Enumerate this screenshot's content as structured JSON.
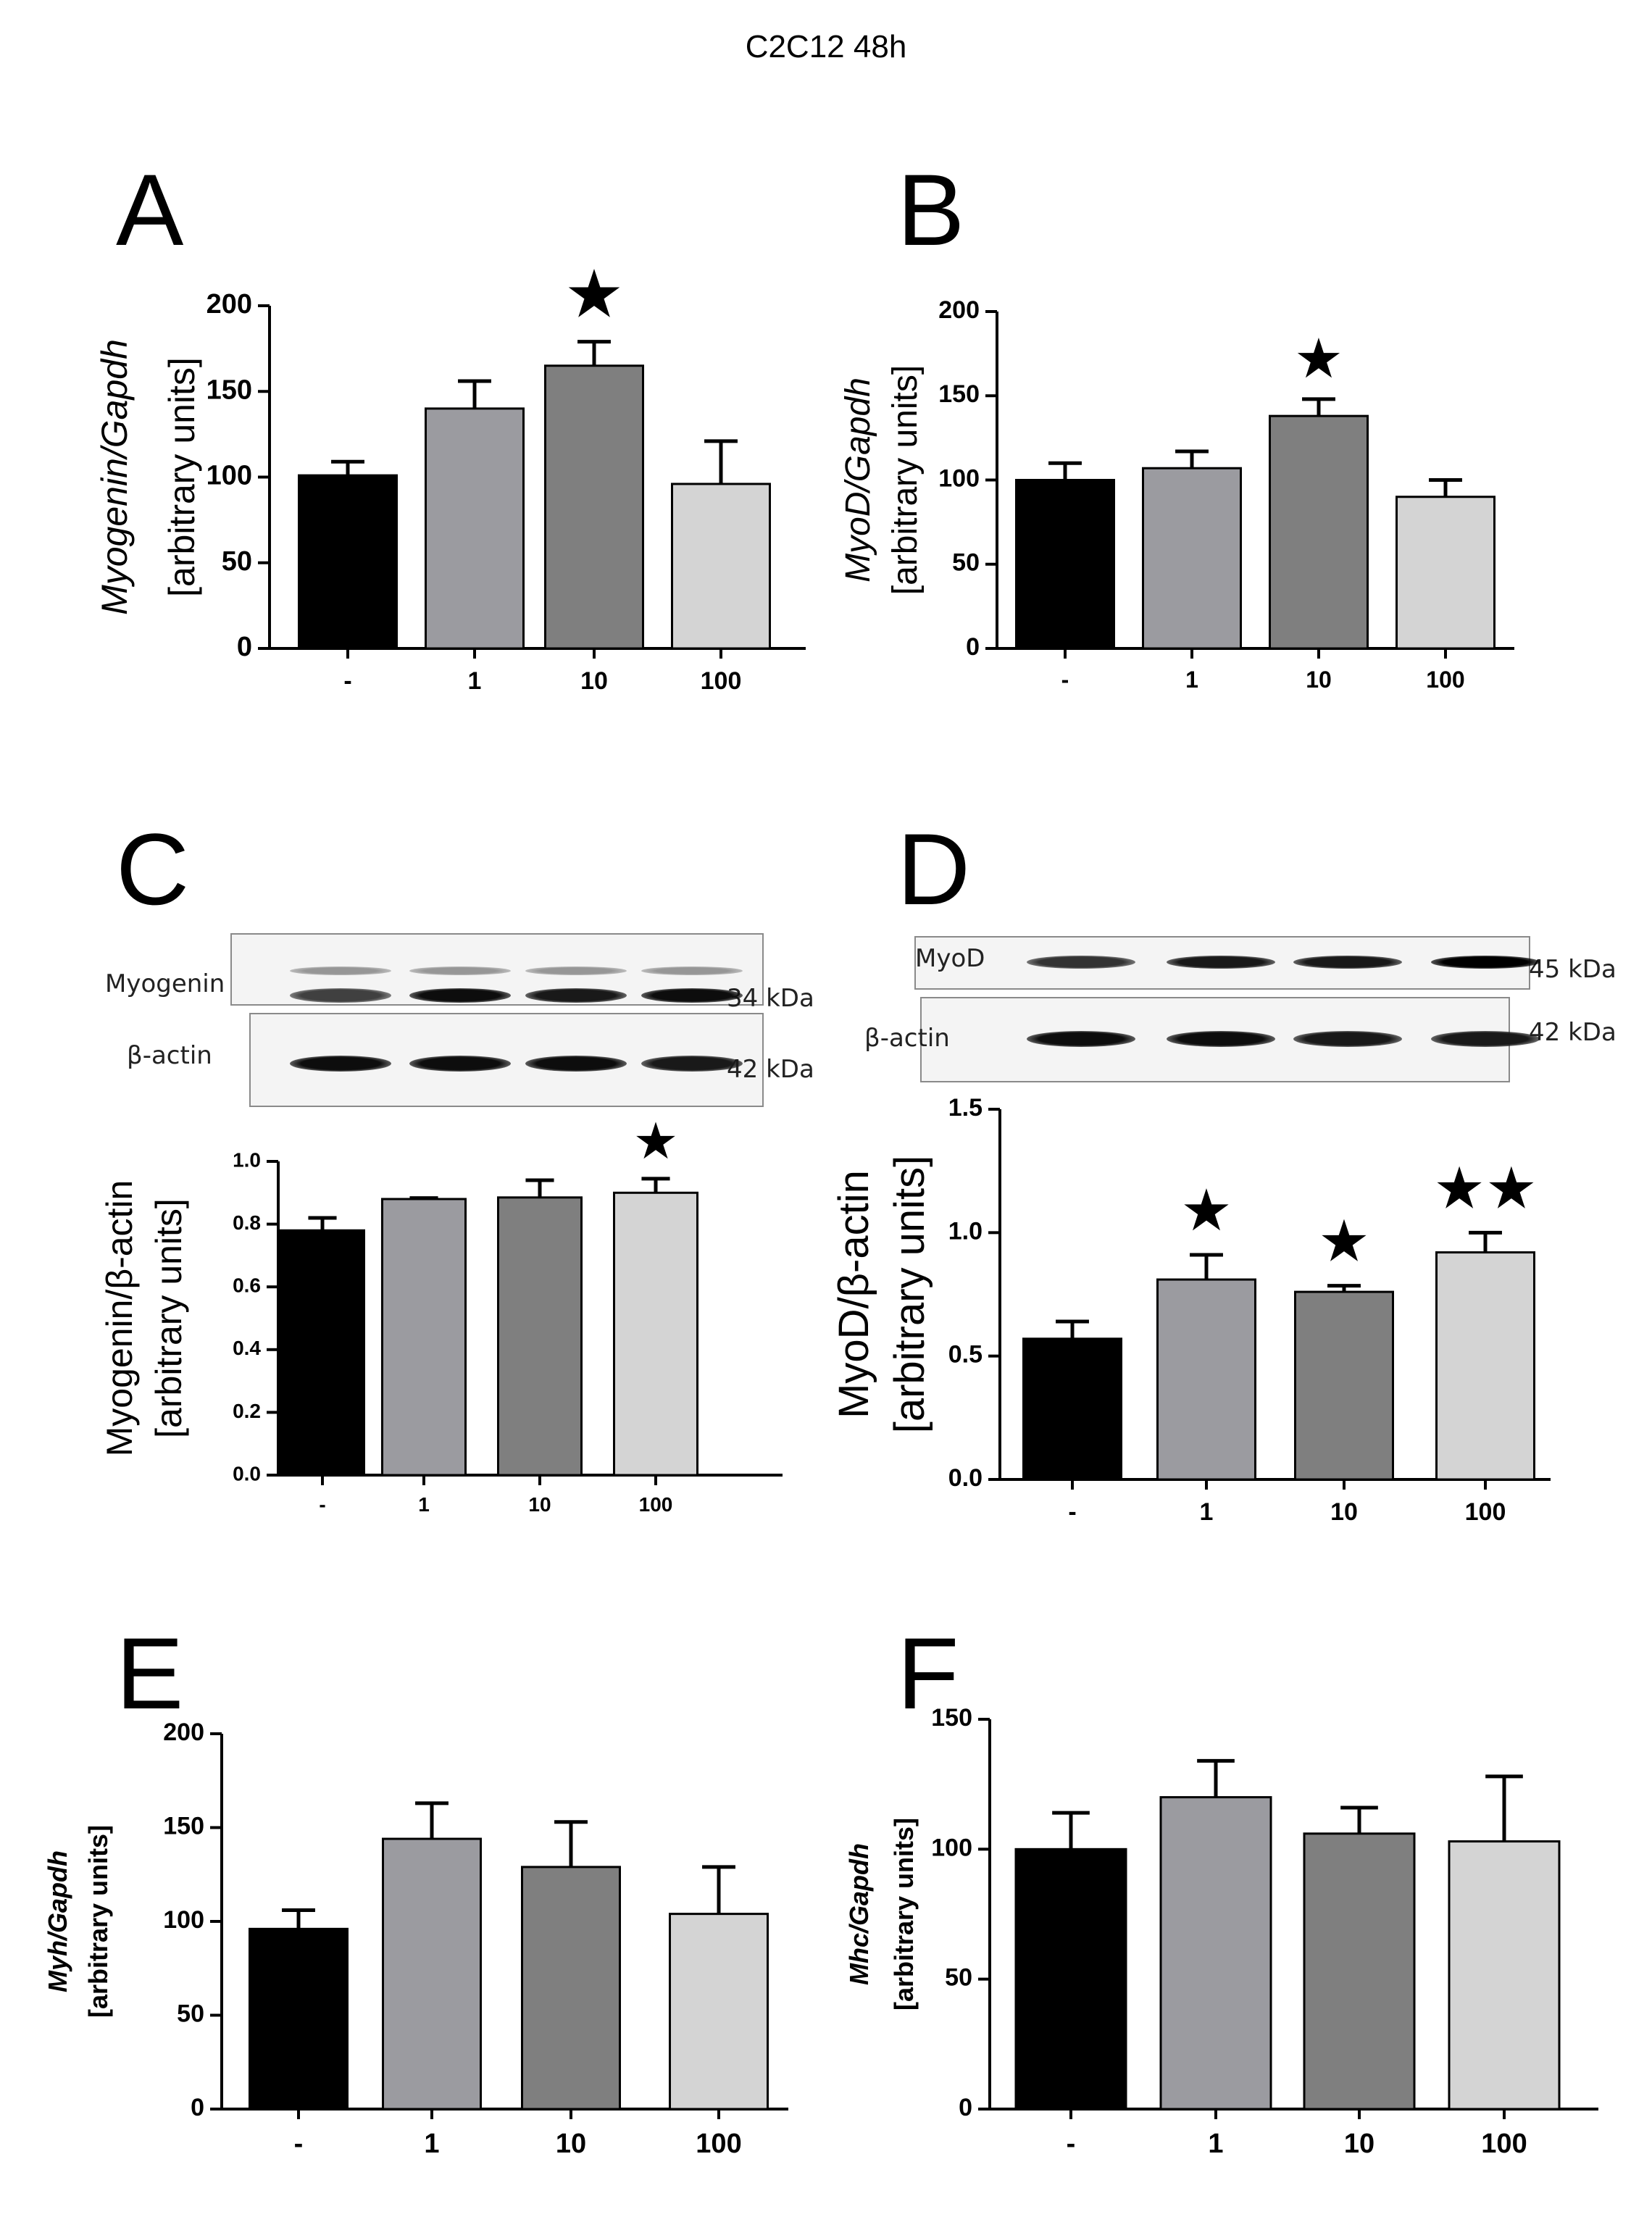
{
  "figure_title": "C2C12 48h",
  "colors": {
    "bar0": "#000000",
    "bar1": "#9b9ba0",
    "bar2": "#7f7f7f",
    "bar3": "#d4d4d4"
  },
  "panels": {
    "A": {
      "letter": "A"
    },
    "B": {
      "letter": "B"
    },
    "C": {
      "letter": "C",
      "blot": {
        "rows": [
          {
            "label": "Myogenin",
            "kda": "34 kDa",
            "intensity": [
              0.75,
              0.95,
              0.9,
              0.95
            ]
          },
          {
            "label": "β-actin",
            "kda": "42 kDa",
            "intensity": [
              0.95,
              0.95,
              0.95,
              0.9
            ]
          }
        ]
      }
    },
    "D": {
      "letter": "D",
      "blot": {
        "rows": [
          {
            "label": "MyoD",
            "kda": "45 kDa",
            "intensity": [
              0.8,
              0.9,
              0.9,
              1.0
            ]
          },
          {
            "label": "β-actin",
            "kda": "42 kDa",
            "intensity": [
              0.95,
              0.95,
              0.9,
              0.9
            ]
          }
        ]
      }
    },
    "E": {
      "letter": "E"
    },
    "F": {
      "letter": "F"
    }
  },
  "chart_data": [
    {
      "panel": "A",
      "type": "bar",
      "categories": [
        "-",
        "1",
        "10",
        "100"
      ],
      "values": [
        101,
        140,
        165,
        96
      ],
      "errors": [
        8,
        16,
        14,
        25
      ],
      "significance": [
        "",
        "",
        "★",
        ""
      ],
      "ylabel_italic": "Myogenin/Gapdh",
      "ylabel_unit": "[arbitrary units]",
      "ylim": [
        0,
        200
      ],
      "yticks": [
        "0",
        "50",
        "100",
        "150",
        "200"
      ]
    },
    {
      "panel": "B",
      "type": "bar",
      "categories": [
        "-",
        "1",
        "10",
        "100"
      ],
      "values": [
        100,
        107,
        138,
        90
      ],
      "errors": [
        10,
        10,
        10,
        10
      ],
      "significance": [
        "",
        "",
        "★",
        ""
      ],
      "ylabel_italic": "MyoD/Gapdh",
      "ylabel_unit": "[arbitrary units]",
      "ylim": [
        0,
        200
      ],
      "yticks": [
        "0",
        "50",
        "100",
        "150",
        "200"
      ]
    },
    {
      "panel": "C",
      "type": "bar",
      "categories": [
        "-",
        "1",
        "10",
        "100"
      ],
      "values": [
        0.78,
        0.88,
        0.885,
        0.9
      ],
      "errors": [
        0.04,
        0.003,
        0.055,
        0.045
      ],
      "significance": [
        "",
        "",
        "",
        "★"
      ],
      "ylabel_main": "Myogenin/β-actin",
      "ylabel_unit": "[arbitrary units]",
      "ylim": [
        0,
        1.0
      ],
      "yticks": [
        "0.0",
        "0.2",
        "0.4",
        "0.6",
        "0.8",
        "1.0"
      ]
    },
    {
      "panel": "D",
      "type": "bar",
      "categories": [
        "-",
        "1",
        "10",
        "100"
      ],
      "values": [
        0.57,
        0.81,
        0.76,
        0.92
      ],
      "errors": [
        0.07,
        0.1,
        0.025,
        0.08
      ],
      "significance": [
        "",
        "★",
        "★",
        "★★"
      ],
      "ylabel_main": "MyoD/β-actin",
      "ylabel_unit": "[arbitrary units]",
      "ylim": [
        0,
        1.5
      ],
      "yticks": [
        "0.0",
        "0.5",
        "1.0",
        "1.5"
      ]
    },
    {
      "panel": "E",
      "type": "bar",
      "categories": [
        "-",
        "1",
        "10",
        "100"
      ],
      "values": [
        96,
        144,
        129,
        104
      ],
      "errors": [
        10,
        19,
        24,
        25
      ],
      "significance": [
        "",
        "",
        "",
        ""
      ],
      "ylabel_italic": "Myh/Gapdh",
      "ylabel_unit": "[arbitrary units]",
      "ylim": [
        0,
        200
      ],
      "yticks": [
        "0",
        "50",
        "100",
        "150",
        "200"
      ]
    },
    {
      "panel": "F",
      "type": "bar",
      "categories": [
        "-",
        "1",
        "10",
        "100"
      ],
      "values": [
        100,
        120,
        106,
        103
      ],
      "errors": [
        14,
        14,
        10,
        25
      ],
      "significance": [
        "",
        "",
        "",
        ""
      ],
      "ylabel_italic": "Mhc/Gapdh",
      "ylabel_unit": "[arbitrary units]",
      "ylim": [
        0,
        150
      ],
      "yticks": [
        "0",
        "50",
        "100",
        "150"
      ]
    }
  ]
}
